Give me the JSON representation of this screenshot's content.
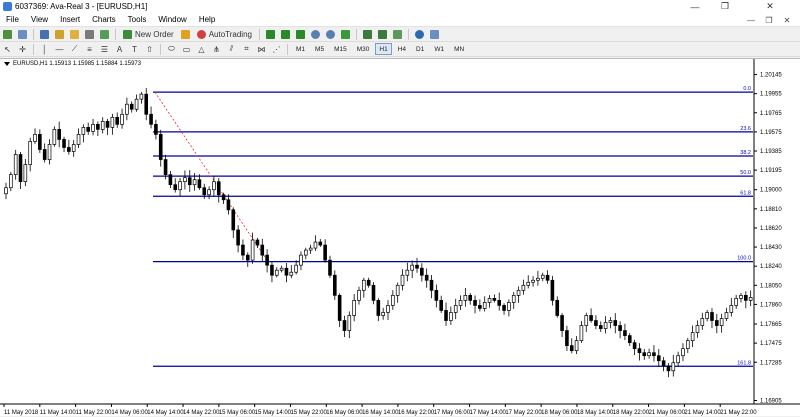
{
  "window": {
    "title": "6037369: Ava-Real 3 - [EURUSD,H1]",
    "controls": [
      "—",
      "❐",
      "✕"
    ]
  },
  "menu": {
    "items": [
      "File",
      "View",
      "Insert",
      "Charts",
      "Tools",
      "Window",
      "Help"
    ],
    "right_controls": [
      "—",
      "❐",
      "✕"
    ]
  },
  "toolbar": {
    "new_order_label": "New Order",
    "autotrading_label": "AutoTrading",
    "timeframes": [
      "M1",
      "M5",
      "M15",
      "M30",
      "H1",
      "H4",
      "D1",
      "W1",
      "MN"
    ],
    "active_timeframe": "H1"
  },
  "chart": {
    "symbol_info": "EURUSD,H1  1.15913 1.15985 1.15884 1.15973",
    "colors": {
      "fib_line": "#0000a8",
      "fib_label": "#0000c0",
      "trend": "#e03030",
      "candle": "#000000"
    },
    "price_levels": [
      "1.20145",
      "1.19955",
      "1.19765",
      "1.19575",
      "1.19385",
      "1.19195",
      "1.19000",
      "1.18810",
      "1.18620",
      "1.18430",
      "1.18240",
      "1.18050",
      "1.17860",
      "1.17665",
      "1.17475",
      "1.17285",
      "1.16905"
    ],
    "time_labels": [
      "11 May 2018",
      "11 May 14:00",
      "11 May 22:00",
      "14 May 06:00",
      "14 May 14:00",
      "14 May 22:00",
      "15 May 06:00",
      "15 May 14:00",
      "15 May 22:00",
      "16 May 06:00",
      "16 May 14:00",
      "16 May 22:00",
      "17 May 06:00",
      "17 May 14:00",
      "17 May 22:00",
      "18 May 06:00",
      "18 May 14:00",
      "18 May 22:00",
      "21 May 06:00",
      "21 May 14:00",
      "21 May 22:00"
    ],
    "fib_levels": [
      {
        "label": "0.0",
        "price": 1.1997
      },
      {
        "label": "23.6",
        "price": 1.19575
      },
      {
        "label": "38.2",
        "price": 1.19335
      },
      {
        "label": "50.0",
        "price": 1.19135
      },
      {
        "label": "61.8",
        "price": 1.18935
      },
      {
        "label": "100.0",
        "price": 1.18285
      },
      {
        "label": "161.8",
        "price": 1.17245
      }
    ]
  },
  "chart_data": {
    "type": "candlestick",
    "symbol": "EURUSD",
    "timeframe": "H1",
    "ylim": [
      1.1687,
      1.2022
    ],
    "close": [
      1.1902,
      1.1915,
      1.1935,
      1.1908,
      1.1925,
      1.1948,
      1.1955,
      1.194,
      1.193,
      1.1945,
      1.196,
      1.195,
      1.1942,
      1.1938,
      1.1945,
      1.1955,
      1.1962,
      1.1958,
      1.1965,
      1.196,
      1.1968,
      1.1962,
      1.1972,
      1.1965,
      1.1975,
      1.1985,
      1.198,
      1.199,
      1.1995,
      1.1975,
      1.1965,
      1.1955,
      1.193,
      1.1915,
      1.1905,
      1.19,
      1.1908,
      1.1912,
      1.1905,
      1.191,
      1.1902,
      1.1895,
      1.19,
      1.1908,
      1.1895,
      1.189,
      1.188,
      1.186,
      1.1845,
      1.1835,
      1.183,
      1.185,
      1.1845,
      1.1835,
      1.1825,
      1.1815,
      1.182,
      1.1822,
      1.1815,
      1.1818,
      1.1825,
      1.1835,
      1.184,
      1.1842,
      1.1848,
      1.1845,
      1.183,
      1.1815,
      1.1795,
      1.177,
      1.176,
      1.1775,
      1.179,
      1.18,
      1.181,
      1.1805,
      1.179,
      1.1775,
      1.1778,
      1.1785,
      1.1795,
      1.1805,
      1.1815,
      1.182,
      1.1825,
      1.1822,
      1.1815,
      1.181,
      1.18,
      1.179,
      1.178,
      1.177,
      1.1778,
      1.1785,
      1.179,
      1.1795,
      1.179,
      1.1785,
      1.1782,
      1.1788,
      1.1792,
      1.179,
      1.1785,
      1.178,
      1.1788,
      1.1795,
      1.18,
      1.1805,
      1.1808,
      1.181,
      1.1812,
      1.1815,
      1.181,
      1.179,
      1.1775,
      1.176,
      1.1745,
      1.174,
      1.175,
      1.1765,
      1.1775,
      1.177,
      1.1765,
      1.1762,
      1.1768,
      1.177,
      1.1765,
      1.176,
      1.1755,
      1.1748,
      1.1742,
      1.1738,
      1.1735,
      1.1738,
      1.1735,
      1.173,
      1.1725,
      1.172,
      1.1728,
      1.1735,
      1.1742,
      1.175,
      1.1758,
      1.1765,
      1.1772,
      1.1778,
      1.177,
      1.1765,
      1.1772,
      1.1778,
      1.1785,
      1.1792,
      1.1795,
      1.179,
      1.1793,
      1.1797,
      1.1795,
      1.179
    ]
  }
}
